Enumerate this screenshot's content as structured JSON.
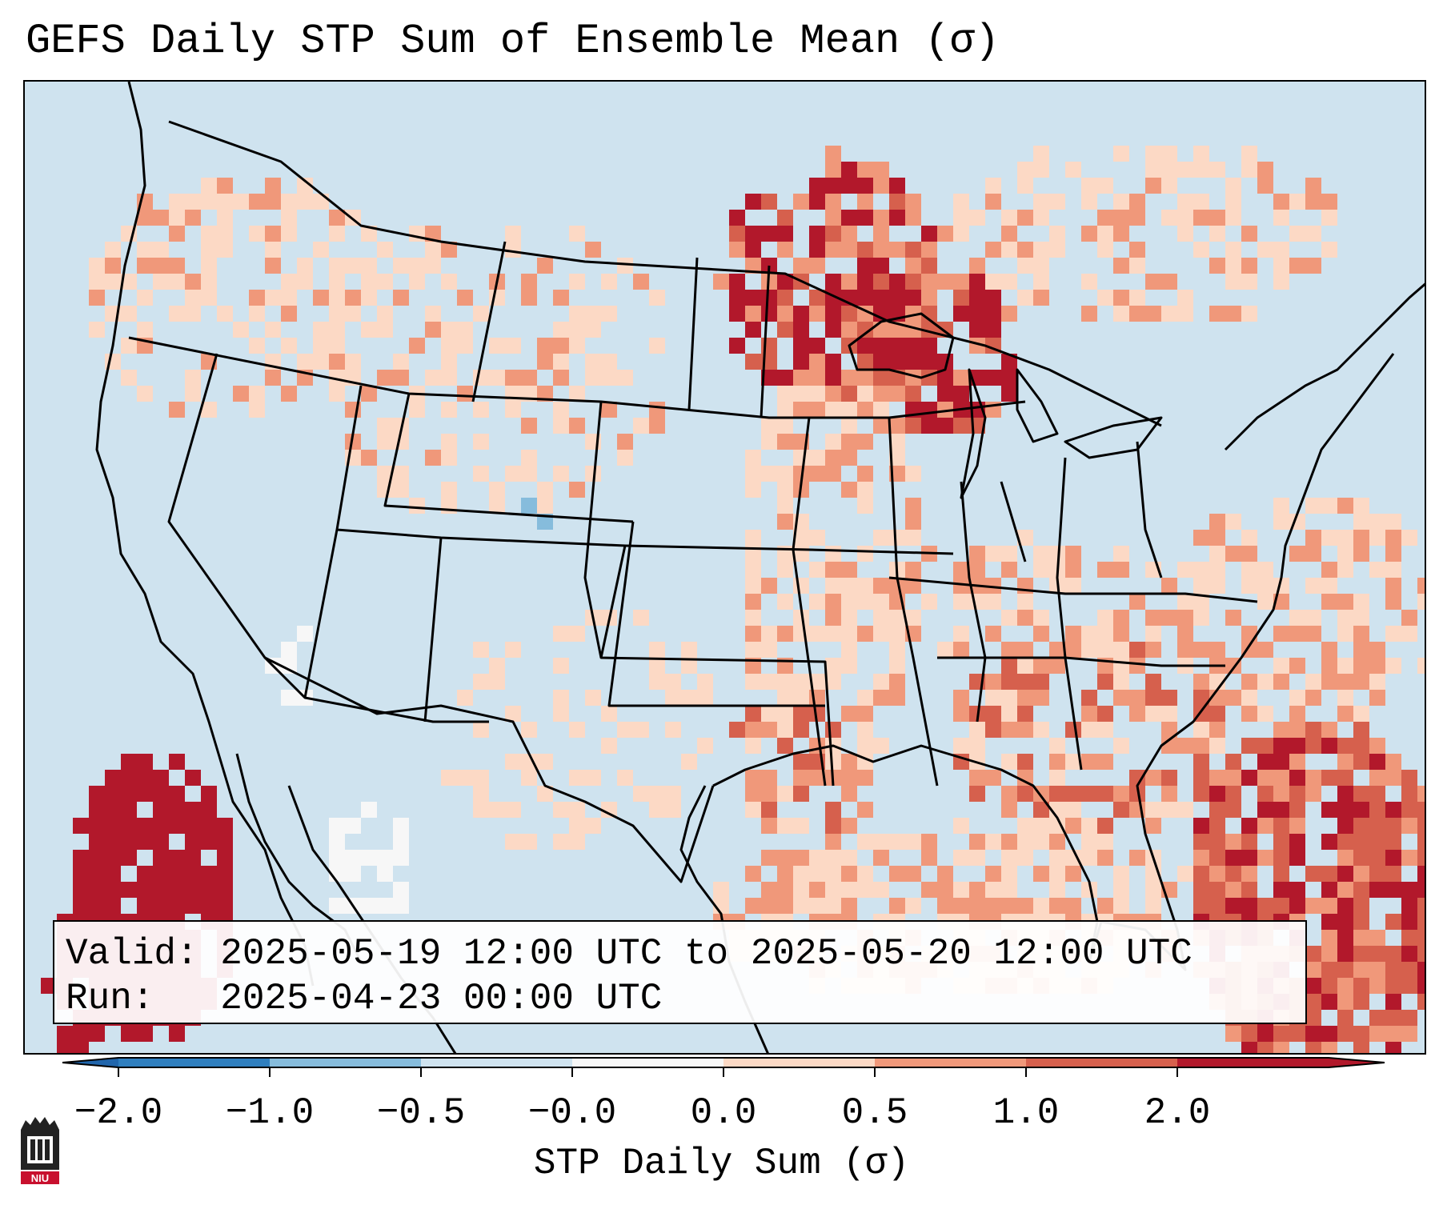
{
  "title": "GEFS Daily STP Sum of Ensemble Mean (σ)",
  "info": {
    "valid_label": "Valid:",
    "valid_value": "2025-05-19 12:00 UTC to 2025-05-20 12:00 UTC",
    "run_label": "Run:",
    "run_value": "2025-04-23 00:00 UTC"
  },
  "colorbar": {
    "label": "STP Daily Sum (σ)",
    "ticks": [
      "−2.0",
      "−1.0",
      "−0.5",
      "−0.0",
      "0.0",
      "0.5",
      "1.0",
      "2.0"
    ],
    "bins": [
      {
        "color": "#2f7fbf"
      },
      {
        "color": "#86bcdc"
      },
      {
        "color": "#cfe3ef"
      },
      {
        "color": "#f7f7f7"
      },
      {
        "color": "#fcd9c5"
      },
      {
        "color": "#f0987a"
      },
      {
        "color": "#d6604d"
      },
      {
        "color": "#b2182b"
      }
    ],
    "under_color": "#2166ac",
    "over_color": "#b2182b"
  },
  "map": {
    "background_color": "#cfe3ef",
    "coastline_color": "#000000",
    "border_color": "#000000"
  },
  "logo": {
    "text": "NIU",
    "color": "#c8102e"
  }
}
